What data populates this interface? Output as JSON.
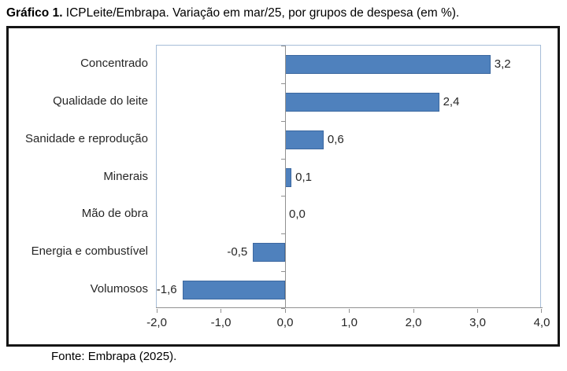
{
  "title": {
    "prefix": "Gráfico 1.",
    "rest": " ICPLeite/Embrapa. Variação em mar/25, por grupos de despesa (em %)."
  },
  "source": "Fonte: Embrapa (2025).",
  "chart_data": {
    "type": "bar",
    "orientation": "horizontal",
    "title": "Gráfico 1. ICPLeite/Embrapa. Variação em mar/25, por grupos de despesa (em %).",
    "categories": [
      "Concentrado",
      "Qualidade do leite",
      "Sanidade e reprodução",
      "Minerais",
      "Mão de obra",
      "Energia e combustível",
      "Volumosos"
    ],
    "values": [
      3.2,
      2.4,
      0.6,
      0.1,
      0.0,
      -0.5,
      -1.6
    ],
    "value_labels": [
      "3,2",
      "2,4",
      "0,6",
      "0,1",
      "0,0",
      "-0,5",
      "-1,6"
    ],
    "x_tick_labels": [
      "-2,0",
      "-1,0",
      "0,0",
      "1,0",
      "2,0",
      "3,0",
      "4,0"
    ],
    "x_tick_values": [
      -2,
      -1,
      0,
      1,
      2,
      3,
      4
    ],
    "xlim": [
      -2.0,
      4.0
    ],
    "xlabel": "",
    "ylabel": "",
    "grid": false,
    "legend": null,
    "colors": {
      "bar_fill": "#4f81bd",
      "bar_border": "#3c68a0",
      "axis_line": "#919191",
      "plot_border": "#a6bdd8",
      "text": "#262626",
      "frame_border": "#151515"
    }
  }
}
